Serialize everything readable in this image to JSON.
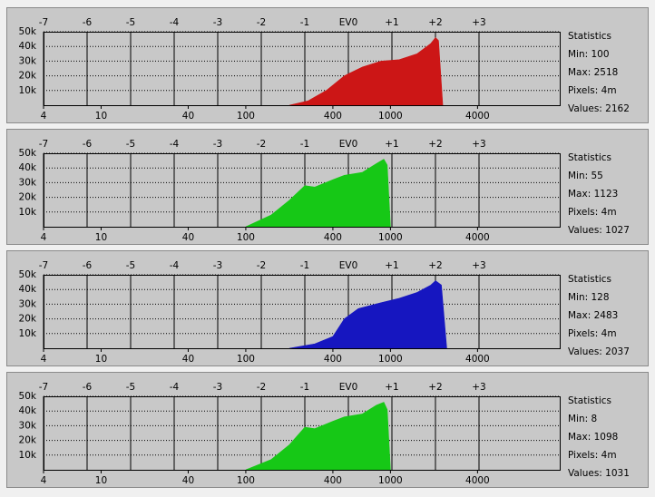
{
  "chart_data": [
    {
      "type": "area",
      "color": "#cc1616",
      "x": [
        200,
        270,
        360,
        480,
        640,
        860,
        1150,
        1530,
        1900,
        2050,
        2150,
        2300
      ],
      "values": [
        0,
        3000,
        10000,
        20000,
        26000,
        30000,
        31000,
        35000,
        42000,
        46000,
        44000,
        0
      ],
      "xlim": [
        4,
        14800
      ],
      "log_x": true,
      "xticks": [
        4,
        10,
        40,
        100,
        400,
        1000,
        4000
      ],
      "x2lim": [
        -7,
        4.854
      ],
      "x2ticks": [
        -7,
        -6,
        -5,
        -4,
        -3,
        -2,
        -1,
        {
          "value": 0,
          "label": "EV0"
        },
        {
          "value": 1,
          "label": "+1"
        },
        {
          "value": 2,
          "label": "+2"
        },
        {
          "value": 3,
          "label": "+3"
        }
      ],
      "ylim": [
        0,
        50000
      ],
      "yticks": [
        {
          "value": 10000,
          "label": "10k"
        },
        {
          "value": 20000,
          "label": "20k"
        },
        {
          "value": 30000,
          "label": "30k"
        },
        {
          "value": 40000,
          "label": "40k"
        },
        {
          "value": 50000,
          "label": "50k"
        }
      ],
      "stats": [
        "Statistics",
        "Min: 100",
        "Max: 2518",
        "Pixels: 4m",
        "Values: 2162"
      ]
    },
    {
      "type": "area",
      "color": "#16c816",
      "x": [
        100,
        150,
        200,
        256,
        300,
        400,
        480,
        640,
        800,
        900,
        950,
        1000
      ],
      "values": [
        0,
        8000,
        18000,
        28000,
        27000,
        32000,
        35000,
        37000,
        43000,
        46000,
        42000,
        0
      ],
      "xlim": [
        4,
        14800
      ],
      "log_x": true,
      "xticks": [
        4,
        10,
        40,
        100,
        400,
        1000,
        4000
      ],
      "x2lim": [
        -7,
        4.854
      ],
      "x2ticks": [
        -7,
        -6,
        -5,
        -4,
        -3,
        -2,
        -1,
        {
          "value": 0,
          "label": "EV0"
        },
        {
          "value": 1,
          "label": "+1"
        },
        {
          "value": 2,
          "label": "+2"
        },
        {
          "value": 3,
          "label": "+3"
        }
      ],
      "ylim": [
        0,
        50000
      ],
      "yticks": [
        {
          "value": 10000,
          "label": "10k"
        },
        {
          "value": 20000,
          "label": "20k"
        },
        {
          "value": 30000,
          "label": "30k"
        },
        {
          "value": 40000,
          "label": "40k"
        },
        {
          "value": 50000,
          "label": "50k"
        }
      ],
      "stats": [
        "Statistics",
        "Min: 55",
        "Max: 1123",
        "Pixels: 4m",
        "Values: 1027"
      ]
    },
    {
      "type": "area",
      "color": "#1616c0",
      "x": [
        200,
        300,
        400,
        480,
        600,
        860,
        1150,
        1530,
        1900,
        2050,
        2250,
        2450
      ],
      "values": [
        0,
        3000,
        8000,
        20000,
        27000,
        31000,
        34000,
        38000,
        43000,
        46000,
        43000,
        0
      ],
      "xlim": [
        4,
        14800
      ],
      "log_x": true,
      "xticks": [
        4,
        10,
        40,
        100,
        400,
        1000,
        4000
      ],
      "x2lim": [
        -7,
        4.854
      ],
      "x2ticks": [
        -7,
        -6,
        -5,
        -4,
        -3,
        -2,
        -1,
        {
          "value": 0,
          "label": "EV0"
        },
        {
          "value": 1,
          "label": "+1"
        },
        {
          "value": 2,
          "label": "+2"
        },
        {
          "value": 3,
          "label": "+3"
        }
      ],
      "ylim": [
        0,
        50000
      ],
      "yticks": [
        {
          "value": 10000,
          "label": "10k"
        },
        {
          "value": 20000,
          "label": "20k"
        },
        {
          "value": 30000,
          "label": "30k"
        },
        {
          "value": 40000,
          "label": "40k"
        },
        {
          "value": 50000,
          "label": "50k"
        }
      ],
      "stats": [
        "Statistics",
        "Min: 128",
        "Max: 2483",
        "Pixels: 4m",
        "Values: 2037"
      ]
    },
    {
      "type": "area",
      "color": "#16c816",
      "x": [
        100,
        150,
        200,
        256,
        300,
        400,
        480,
        640,
        800,
        900,
        950,
        1000
      ],
      "values": [
        0,
        7000,
        17000,
        29000,
        28000,
        33000,
        36000,
        38000,
        44000,
        46000,
        41000,
        0
      ],
      "xlim": [
        4,
        14800
      ],
      "log_x": true,
      "xticks": [
        4,
        10,
        40,
        100,
        400,
        1000,
        4000
      ],
      "x2lim": [
        -7,
        4.854
      ],
      "x2ticks": [
        -7,
        -6,
        -5,
        -4,
        -3,
        -2,
        -1,
        {
          "value": 0,
          "label": "EV0"
        },
        {
          "value": 1,
          "label": "+1"
        },
        {
          "value": 2,
          "label": "+2"
        },
        {
          "value": 3,
          "label": "+3"
        }
      ],
      "ylim": [
        0,
        50000
      ],
      "yticks": [
        {
          "value": 10000,
          "label": "10k"
        },
        {
          "value": 20000,
          "label": "20k"
        },
        {
          "value": 30000,
          "label": "30k"
        },
        {
          "value": 40000,
          "label": "40k"
        },
        {
          "value": 50000,
          "label": "50k"
        }
      ],
      "stats": [
        "Statistics",
        "Min: 8",
        "Max: 1098",
        "Pixels: 4m",
        "Values: 1031"
      ]
    }
  ]
}
